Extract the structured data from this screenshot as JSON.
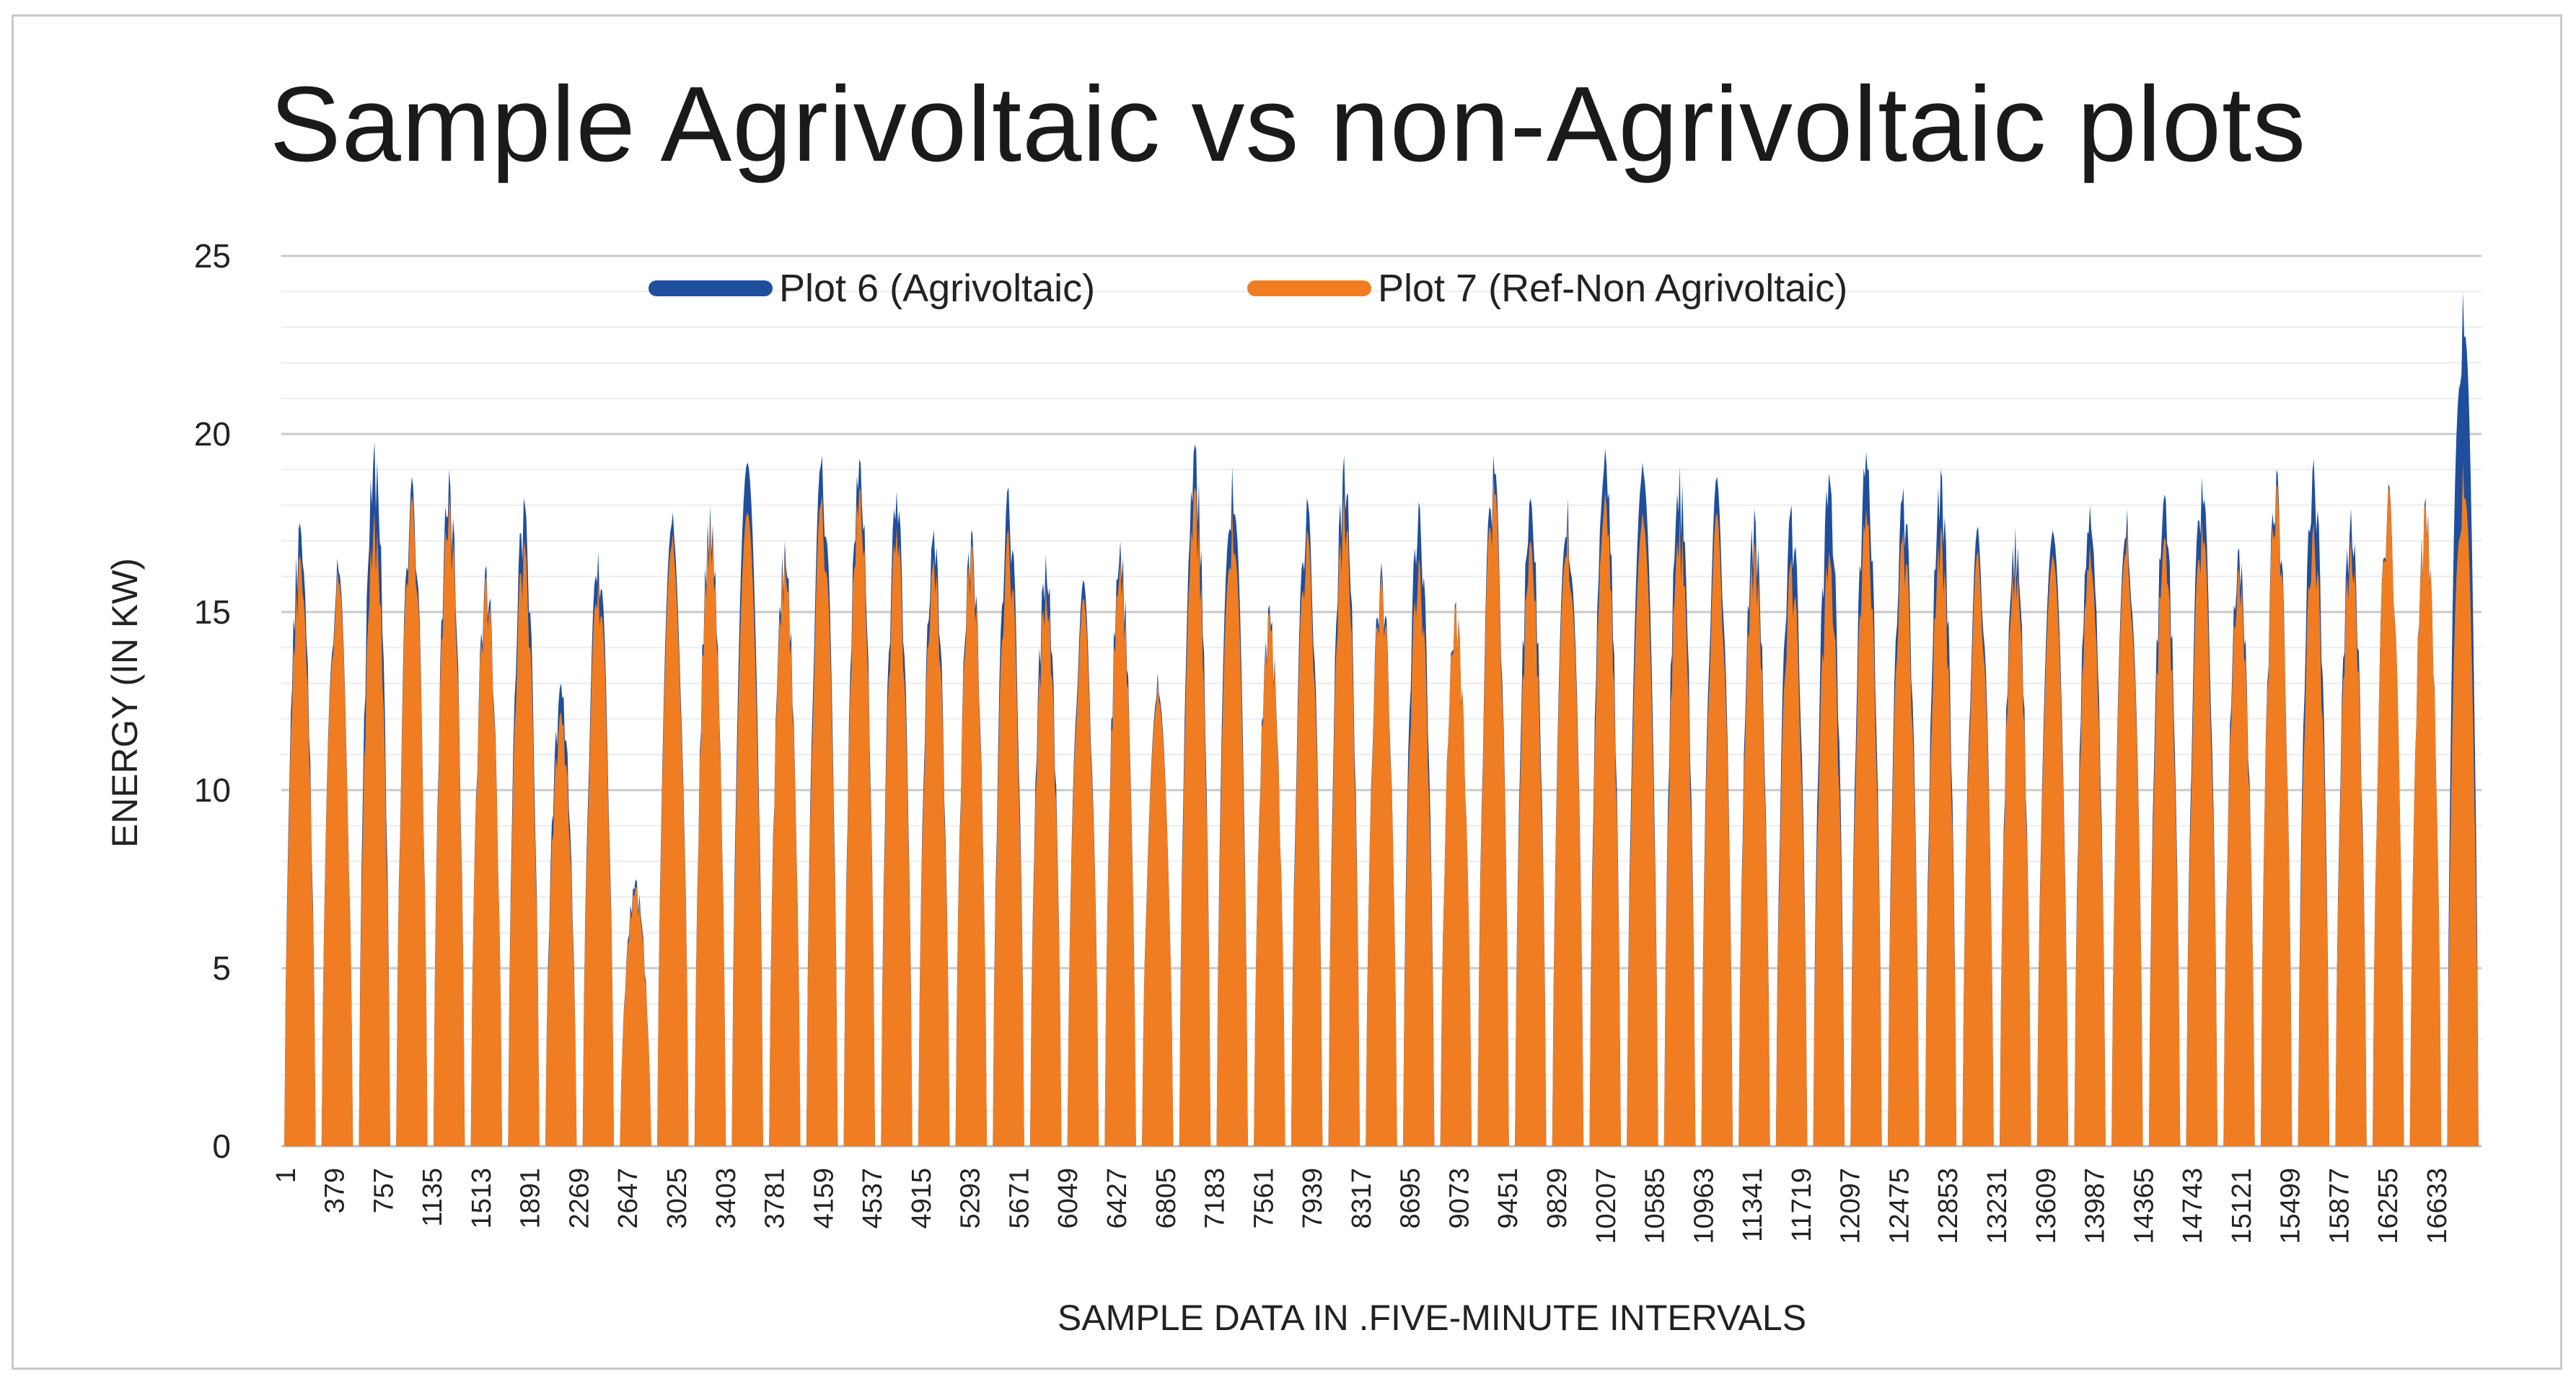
{
  "chart_data": {
    "type": "bar",
    "title": "Sample Agrivoltaic vs non-Agrivoltaic plots",
    "xlabel": "SAMPLE DATA IN .FIVE-MINUTE INTERVALS",
    "ylabel": "ENERGY (IN KW)",
    "ylim": [
      0,
      25
    ],
    "yticks": [
      0,
      5,
      10,
      15,
      20,
      25
    ],
    "grid": true,
    "legend_position": "top",
    "xtick_labels": [
      "1",
      "379",
      "757",
      "1135",
      "1513",
      "1891",
      "2269",
      "2647",
      "3025",
      "3403",
      "3781",
      "4159",
      "4537",
      "4915",
      "5293",
      "5671",
      "6049",
      "6427",
      "6805",
      "7183",
      "7561",
      "7939",
      "8317",
      "8695",
      "9073",
      "9451",
      "9829",
      "10207",
      "10585",
      "10963",
      "11341",
      "11719",
      "12097",
      "12475",
      "12853",
      "13231",
      "13609",
      "13987",
      "14365",
      "14743",
      "15121",
      "15499",
      "15877",
      "16255",
      "16633"
    ],
    "daily_peak_series": [
      {
        "name": "Plot 6 (Agrivoltaic)",
        "color": "#1f4e9c",
        "values": [
          17.5,
          16.5,
          19.8,
          18.8,
          19.0,
          16.3,
          18.2,
          13.0,
          16.7,
          7.5,
          17.8,
          18.0,
          19.2,
          17.0,
          19.4,
          19.3,
          18.4,
          17.3,
          17.3,
          18.5,
          16.6,
          15.9,
          17.0,
          13.3,
          19.7,
          19.1,
          15.2,
          18.2,
          19.4,
          16.4,
          18.1,
          15.3,
          19.4,
          18.2,
          18.2,
          19.6,
          19.2,
          19.1,
          18.8,
          17.9,
          18.0,
          18.9,
          19.5,
          18.5,
          19.0,
          17.4,
          17.4,
          17.3,
          18.0,
          17.9,
          18.3,
          18.8,
          16.8,
          19.0,
          19.3,
          17.9,
          18.6,
          18.2,
          24.0
        ]
      },
      {
        "name": "Plot 7 (Ref-Non Agrivoltaic)",
        "color": "#f07d22",
        "values": [
          16.6,
          16.2,
          17.8,
          18.3,
          18.3,
          16.0,
          17.0,
          12.2,
          15.9,
          7.3,
          17.2,
          17.6,
          17.8,
          16.6,
          18.3,
          18.5,
          17.4,
          16.5,
          16.9,
          17.3,
          15.8,
          15.4,
          16.5,
          13.1,
          18.5,
          17.9,
          15.0,
          17.3,
          18.3,
          16.1,
          16.5,
          15.2,
          18.8,
          17.0,
          17.6,
          18.4,
          17.8,
          17.7,
          17.8,
          17.0,
          16.5,
          16.7,
          17.9,
          17.3,
          17.4,
          16.7,
          16.7,
          16.6,
          16.9,
          17.4,
          17.1,
          17.6,
          16.2,
          18.6,
          17.5,
          17.1,
          18.5,
          18.1,
          19.2
        ]
      }
    ]
  }
}
